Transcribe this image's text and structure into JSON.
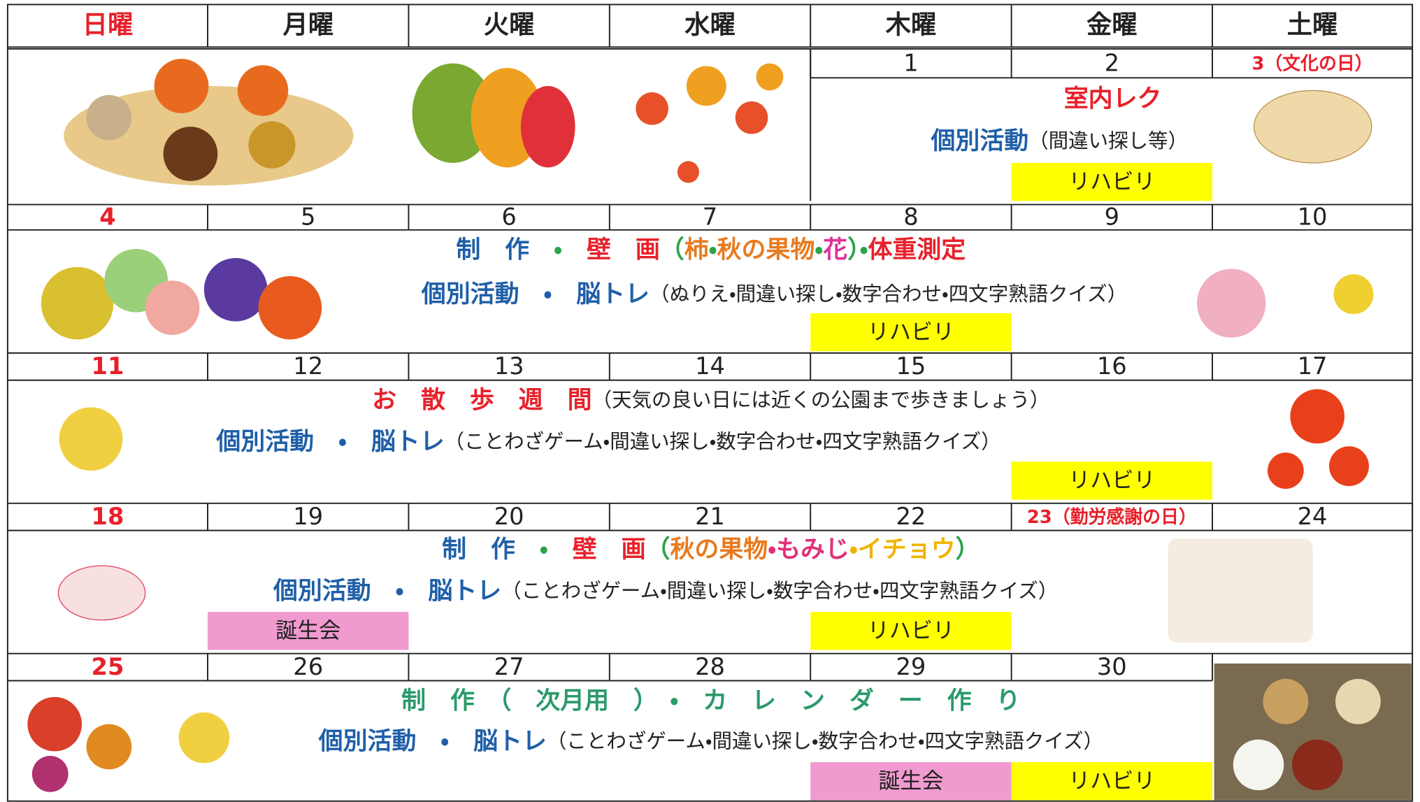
{
  "header": {
    "days": [
      "日曜",
      "月曜",
      "火曜",
      "水曜",
      "木曜",
      "金曜",
      "土曜"
    ]
  },
  "weeks": [
    {
      "days": [
        null,
        null,
        null,
        null,
        {
          "date": "1"
        },
        {
          "date": "2",
          "bar": {
            "label": "リハビリ",
            "color": "#ffff00"
          }
        },
        {
          "date": "3（文化の日）"
        }
      ],
      "lines": [
        [
          {
            "text": "室内レク",
            "color": "#e8202a"
          }
        ],
        [
          {
            "text": "個別活動",
            "color": "#1f5fa8"
          },
          {
            "text": "（間違い探し等）",
            "color": "#222222"
          }
        ]
      ]
    },
    {
      "days": [
        {
          "date": "4"
        },
        {
          "date": "5"
        },
        {
          "date": "6"
        },
        {
          "date": "7"
        },
        {
          "date": "8",
          "bar": {
            "label": "リハビリ",
            "color": "#ffff00"
          }
        },
        {
          "date": "9"
        },
        {
          "date": "10"
        }
      ],
      "lines": [
        [
          {
            "text": "制　作",
            "color": "#1f5fa8"
          },
          {
            "text": "　・　",
            "color": "#2aa44a"
          },
          {
            "text": "壁　画",
            "color": "#e8202a"
          },
          {
            "text": "（",
            "color": "#2aa44a"
          },
          {
            "text": "柿",
            "color": "#e87a1e"
          },
          {
            "text": "・",
            "color": "#2aa44a"
          },
          {
            "text": "秋の果物",
            "color": "#e87a1e"
          },
          {
            "text": "・",
            "color": "#2aa44a"
          },
          {
            "text": "花",
            "color": "#e0309a"
          },
          {
            "text": "）・",
            "color": "#2aa44a"
          },
          {
            "text": "体重測定",
            "color": "#e8202a"
          }
        ],
        [
          {
            "text": "個別活動　・　脳トレ",
            "color": "#1f5fa8"
          },
          {
            "text": "（ぬりえ・間違い探し・数字合わせ・四文字熟語クイズ）",
            "color": "#222222"
          }
        ]
      ]
    },
    {
      "days": [
        {
          "date": "11"
        },
        {
          "date": "12"
        },
        {
          "date": "13"
        },
        {
          "date": "14"
        },
        {
          "date": "15"
        },
        {
          "date": "16",
          "bar": {
            "label": "リハビリ",
            "color": "#ffff00"
          }
        },
        {
          "date": "17"
        }
      ],
      "lines": [
        [
          {
            "text": "お　散　歩　週　間",
            "color": "#e8202a"
          },
          {
            "text": "（天気の良い日には近くの公園まで歩きましょう）",
            "color": "#222222"
          }
        ],
        [
          {
            "text": "個別活動　・　脳トレ",
            "color": "#1f5fa8"
          },
          {
            "text": "（ことわざゲーム・間違い探し・数字合わせ・四文字熟語クイズ）",
            "color": "#222222"
          }
        ]
      ]
    },
    {
      "days": [
        {
          "date": "18"
        },
        {
          "date": "19",
          "bar": {
            "label": "誕生会",
            "color": "#f09ad0"
          }
        },
        {
          "date": "20"
        },
        {
          "date": "21"
        },
        {
          "date": "22",
          "bar": {
            "label": "リハビリ",
            "color": "#ffff00"
          }
        },
        {
          "date": "23（勤労感謝の日）"
        },
        {
          "date": "24"
        }
      ],
      "lines": [
        [
          {
            "text": "制　作",
            "color": "#1f5fa8"
          },
          {
            "text": "　・　",
            "color": "#2aa44a"
          },
          {
            "text": "壁　画",
            "color": "#e8202a"
          },
          {
            "text": "（",
            "color": "#2aa44a"
          },
          {
            "text": "秋の果物",
            "color": "#e87a1e"
          },
          {
            "text": "・もみじ",
            "color": "#e0307a"
          },
          {
            "text": "・イチョウ",
            "color": "#f0b400"
          },
          {
            "text": "）",
            "color": "#2aa44a"
          }
        ],
        [
          {
            "text": "個別活動　・　脳トレ",
            "color": "#1f5fa8"
          },
          {
            "text": "（ことわざゲーム・間違い探し・数字合わせ・四文字熟語クイズ）",
            "color": "#222222"
          }
        ]
      ]
    },
    {
      "days": [
        {
          "date": "25"
        },
        {
          "date": "26"
        },
        {
          "date": "27"
        },
        {
          "date": "28"
        },
        {
          "date": "29",
          "bar": {
            "label": "誕生会",
            "color": "#f09ad0"
          }
        },
        {
          "date": "30",
          "bar": {
            "label": "リハビリ",
            "color": "#ffff00"
          }
        },
        null
      ],
      "lines": [
        [
          {
            "text": "制　作　（　次月用　）　・　カ　レ　ン　ダ　ー　作　り",
            "color": "#2a9a6a"
          }
        ],
        [
          {
            "text": "個別活動　・　脳トレ",
            "color": "#1f5fa8"
          },
          {
            "text": "（ことわざゲーム・間違い探し・数字合わせ・四文字熟語クイズ）",
            "color": "#222222"
          }
        ]
      ]
    }
  ]
}
